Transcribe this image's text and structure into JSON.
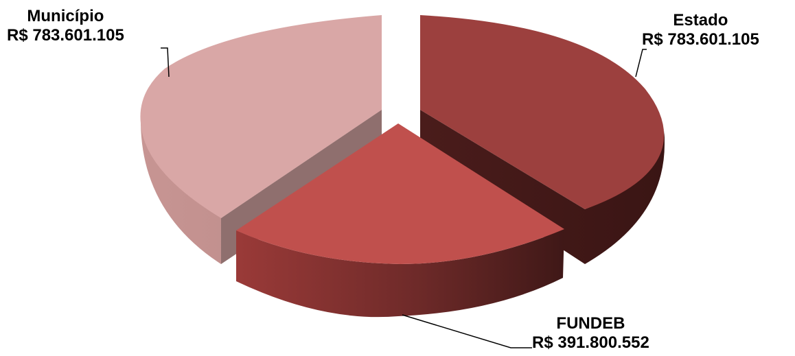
{
  "chart_data": {
    "type": "pie",
    "style": "3d-exploded",
    "slices": [
      {
        "label": "Estado",
        "value_label": "R$ 783.601.105",
        "value": 783601105,
        "color": "#9C403E"
      },
      {
        "label": "FUNDEB",
        "value_label": "R$ 391.800.552",
        "value": 391800552,
        "color": "#C0504D"
      },
      {
        "label": "Município",
        "value_label": "R$ 783.601.105",
        "value": 783601105,
        "color": "#D9A7A6"
      }
    ]
  }
}
